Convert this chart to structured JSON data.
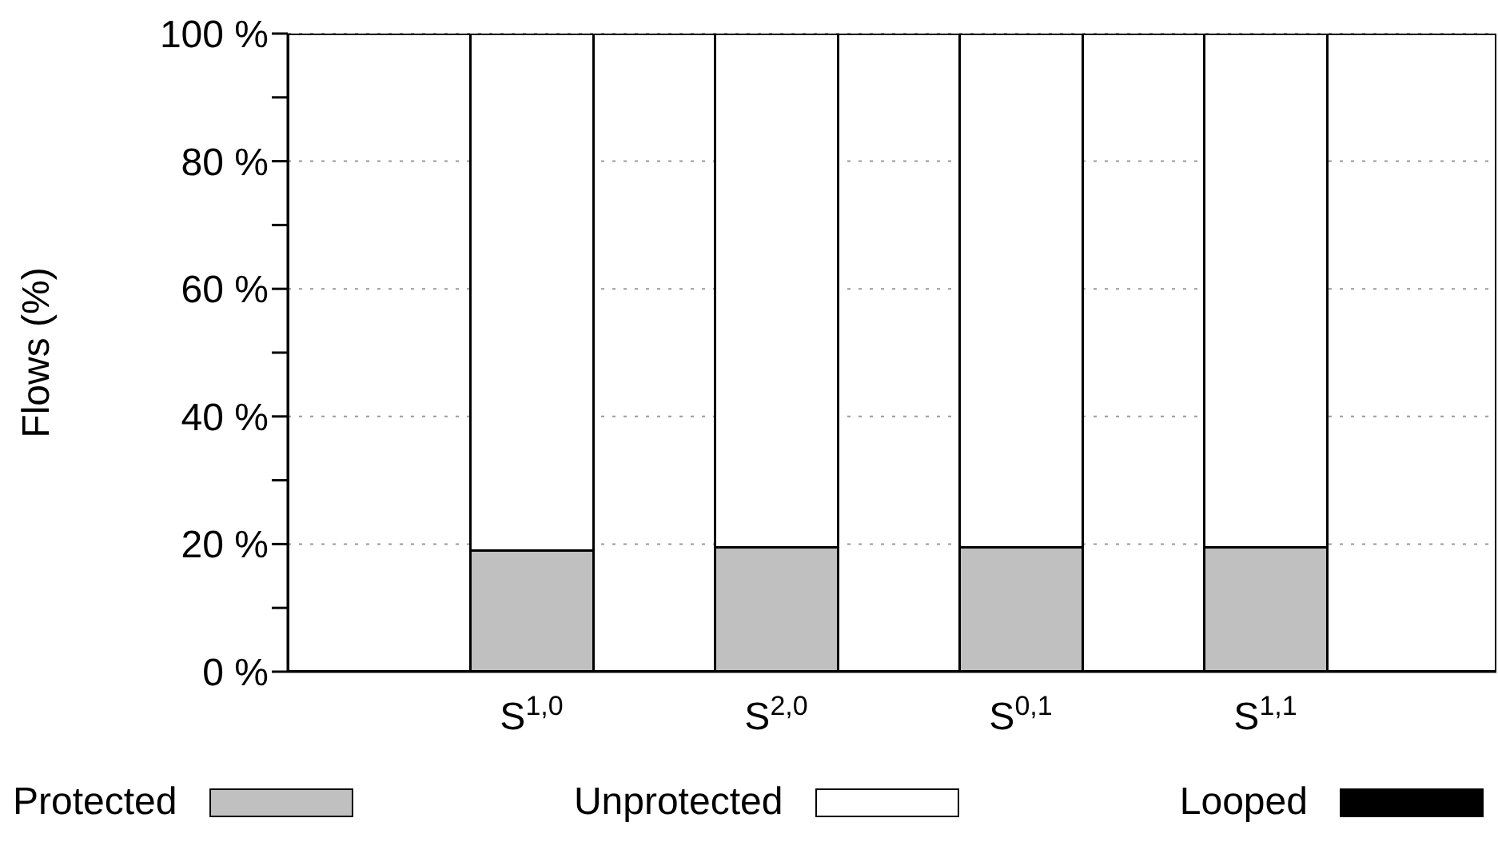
{
  "chart_data": {
    "type": "bar",
    "stacked": true,
    "ylabel": "Flows (%)",
    "categories": [
      "S$^{1,0}$",
      "S$^{2,0}$",
      "S$^{0,1}$",
      "S$^{1,1}$"
    ],
    "series": [
      {
        "name": "Protected",
        "color": "#c0c0c0",
        "values": [
          19,
          19.5,
          19.5,
          19.5
        ]
      },
      {
        "name": "Unprotected",
        "color": "#ffffff",
        "values": [
          81,
          80.5,
          80.5,
          80.5
        ]
      },
      {
        "name": "Looped",
        "color": "#000000",
        "values": [
          0,
          0,
          0,
          0
        ]
      }
    ],
    "ylim": [
      0,
      100
    ],
    "yticks": [
      {
        "value": 0,
        "label": "0 %"
      },
      {
        "value": 10,
        "label": null
      },
      {
        "value": 20,
        "label": "20 %"
      },
      {
        "value": 30,
        "label": null
      },
      {
        "value": 40,
        "label": "40 %"
      },
      {
        "value": 50,
        "label": null
      },
      {
        "value": 60,
        "label": "60 %"
      },
      {
        "value": 70,
        "label": null
      },
      {
        "value": 80,
        "label": "80 %"
      },
      {
        "value": 90,
        "label": null
      },
      {
        "value": 100,
        "label": "100 %"
      }
    ],
    "grid": "y",
    "legend": "bottom"
  }
}
